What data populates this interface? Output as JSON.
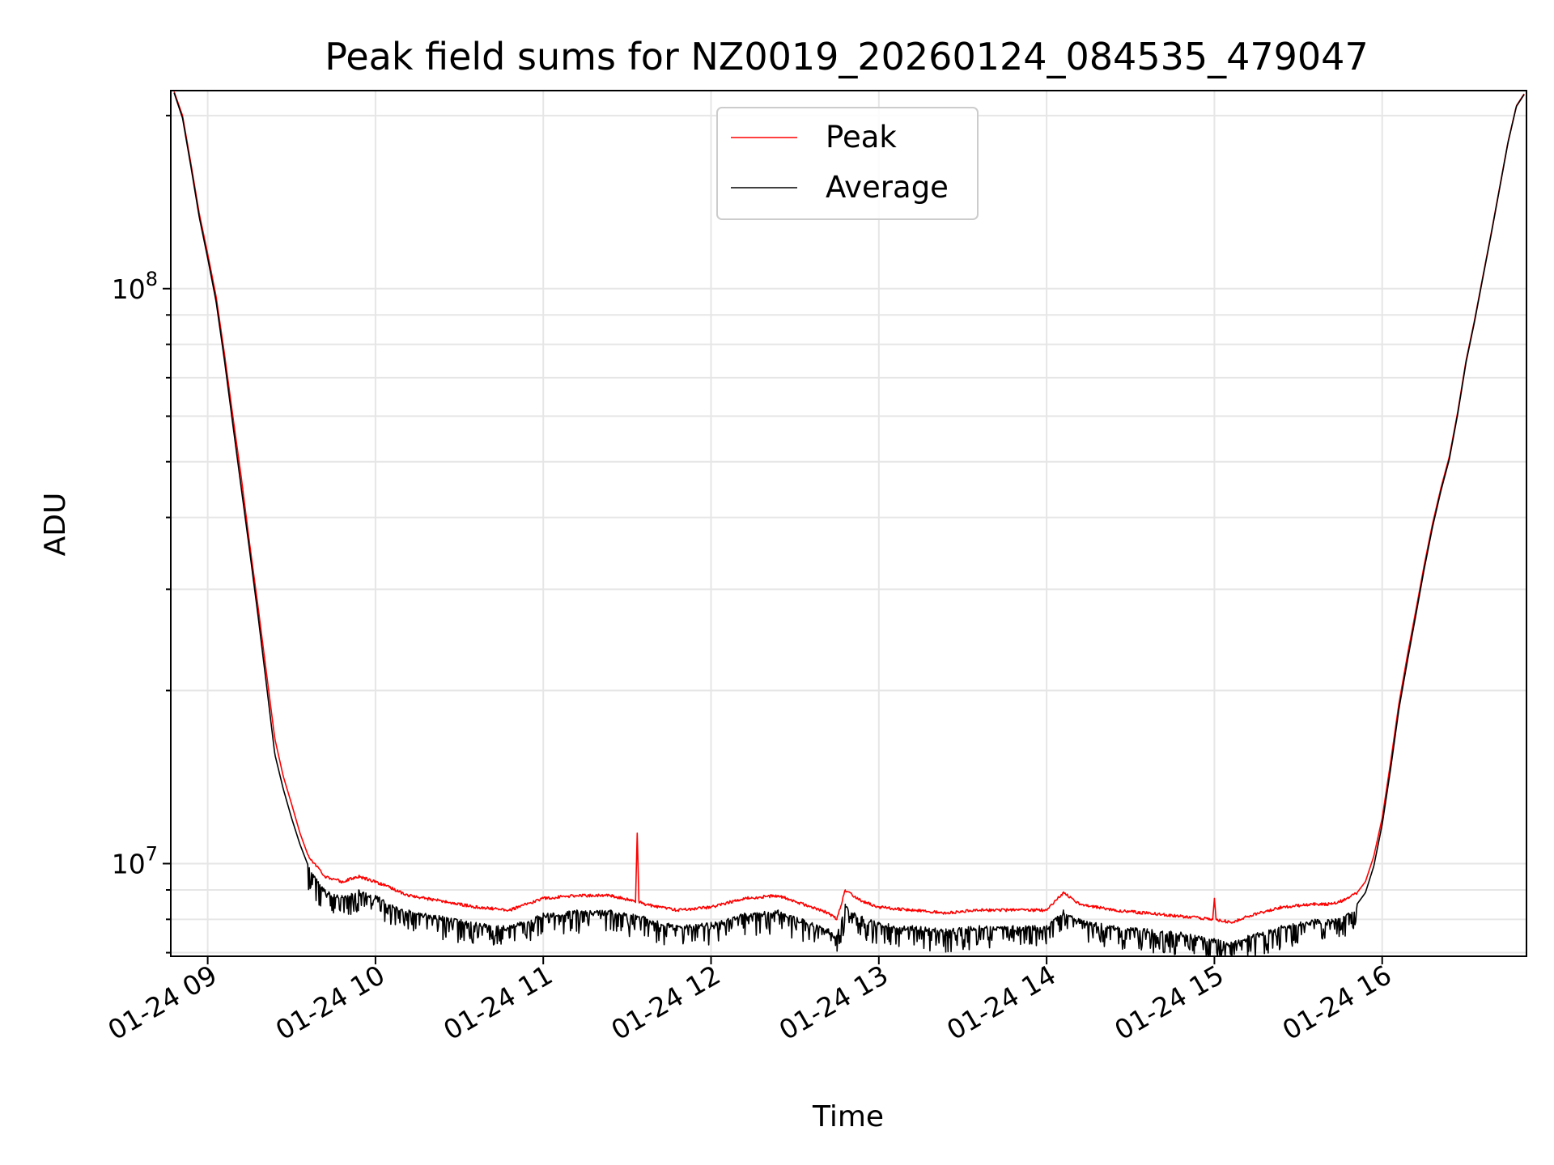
{
  "chart_data": {
    "type": "line",
    "title": "Peak field sums for NZ0019_20260124_084535_479047",
    "xlabel": "Time",
    "ylabel": "ADU",
    "yscale": "log",
    "ylim": [
      6900000,
      221000000
    ],
    "xlim_hours": [
      8.78,
      16.86
    ],
    "grid": true,
    "legend_position": "upper center",
    "x_ticks": [
      {
        "hour": 9,
        "label": "01-24 09"
      },
      {
        "hour": 10,
        "label": "01-24 10"
      },
      {
        "hour": 11,
        "label": "01-24 11"
      },
      {
        "hour": 12,
        "label": "01-24 12"
      },
      {
        "hour": 13,
        "label": "01-24 13"
      },
      {
        "hour": 14,
        "label": "01-24 14"
      },
      {
        "hour": 15,
        "label": "01-24 15"
      },
      {
        "hour": 16,
        "label": "01-24 16"
      }
    ],
    "y_ticks": [
      {
        "value": 10000000,
        "base": "10",
        "exp": "7"
      },
      {
        "value": 100000000,
        "base": "10",
        "exp": "8"
      }
    ],
    "x_unit": "hour of 2026-01-24",
    "series": [
      {
        "name": "Peak",
        "color": "#ff0000",
        "x": [
          8.8,
          8.85,
          8.9,
          8.95,
          9.0,
          9.05,
          9.1,
          9.15,
          9.2,
          9.25,
          9.3,
          9.35,
          9.4,
          9.45,
          9.5,
          9.55,
          9.6,
          9.65,
          9.7,
          9.8,
          9.9,
          10.0,
          10.2,
          10.4,
          10.6,
          10.8,
          11.0,
          11.2,
          11.4,
          11.55,
          11.56,
          11.57,
          11.6,
          11.8,
          12.0,
          12.2,
          12.4,
          12.55,
          12.7,
          12.75,
          12.8,
          12.9,
          13.0,
          13.2,
          13.4,
          13.6,
          13.8,
          14.0,
          14.1,
          14.2,
          14.4,
          14.6,
          14.8,
          14.99,
          15.0,
          15.01,
          15.1,
          15.2,
          15.4,
          15.6,
          15.7,
          15.8,
          15.85,
          15.9,
          15.95,
          16.0,
          16.05,
          16.1,
          16.15,
          16.2,
          16.25,
          16.3,
          16.35,
          16.4,
          16.45,
          16.5,
          16.55,
          16.6,
          16.65,
          16.7,
          16.75,
          16.8,
          16.85
        ],
        "y": [
          220000000,
          200000000,
          165000000,
          135000000,
          115000000,
          97000000,
          77000000,
          60000000,
          47000000,
          36000000,
          28000000,
          21500000,
          16500000,
          14200000,
          12700000,
          11300000,
          10300000,
          9900000,
          9500000,
          9300000,
          9500000,
          9300000,
          8800000,
          8600000,
          8400000,
          8300000,
          8700000,
          8800000,
          8800000,
          8600000,
          11300000,
          8600000,
          8500000,
          8300000,
          8400000,
          8700000,
          8800000,
          8500000,
          8200000,
          8000000,
          9000000,
          8600000,
          8400000,
          8300000,
          8200000,
          8300000,
          8300000,
          8300000,
          8900000,
          8500000,
          8300000,
          8200000,
          8100000,
          8000000,
          8700000,
          8000000,
          7900000,
          8100000,
          8400000,
          8500000,
          8500000,
          8700000,
          8900000,
          9300000,
          10300000,
          12000000,
          15000000,
          19000000,
          23000000,
          27500000,
          33000000,
          39000000,
          45000000,
          51000000,
          61000000,
          75000000,
          88000000,
          105000000,
          125000000,
          150000000,
          180000000,
          208000000,
          219000000
        ]
      },
      {
        "name": "Average",
        "color": "#000000",
        "x": [
          8.8,
          8.85,
          8.9,
          8.95,
          9.0,
          9.05,
          9.1,
          9.15,
          9.2,
          9.25,
          9.3,
          9.35,
          9.4,
          9.45,
          9.5,
          9.55,
          9.6,
          9.65,
          9.7,
          9.8,
          9.9,
          10.0,
          10.2,
          10.4,
          10.6,
          10.8,
          11.0,
          11.2,
          11.4,
          11.6,
          11.8,
          12.0,
          12.2,
          12.4,
          12.55,
          12.7,
          12.75,
          12.8,
          12.9,
          13.0,
          13.2,
          13.4,
          13.6,
          13.8,
          14.0,
          14.1,
          14.2,
          14.4,
          14.6,
          14.8,
          15.0,
          15.1,
          15.2,
          15.4,
          15.6,
          15.7,
          15.8,
          15.85,
          15.9,
          15.95,
          16.0,
          16.05,
          16.1,
          16.15,
          16.2,
          16.25,
          16.3,
          16.35,
          16.4,
          16.45,
          16.5,
          16.55,
          16.6,
          16.65,
          16.7,
          16.75,
          16.8,
          16.85
        ],
        "y": [
          219000000,
          198000000,
          163000000,
          133000000,
          113000000,
          95000000,
          75000000,
          58000000,
          45000000,
          35000000,
          27000000,
          20500000,
          15500000,
          13500000,
          12000000,
          10800000,
          9900000,
          9400000,
          9000000,
          8800000,
          9000000,
          8800000,
          8300000,
          8100000,
          7900000,
          7800000,
          8200000,
          8300000,
          8300000,
          8100000,
          7800000,
          7900000,
          8200000,
          8300000,
          8000000,
          7700000,
          7500000,
          8500000,
          8100000,
          7900000,
          7800000,
          7700000,
          7800000,
          7800000,
          7800000,
          8300000,
          8000000,
          7800000,
          7700000,
          7600000,
          7400000,
          7300000,
          7500000,
          7800000,
          8000000,
          8000000,
          8200000,
          8500000,
          8900000,
          9900000,
          11700000,
          14600000,
          18600000,
          22500000,
          27000000,
          32500000,
          38500000,
          44500000,
          50500000,
          60500000,
          74500000,
          87500000,
          104500000,
          124500000,
          149500000,
          179500000,
          207500000,
          218500000
        ]
      }
    ]
  }
}
